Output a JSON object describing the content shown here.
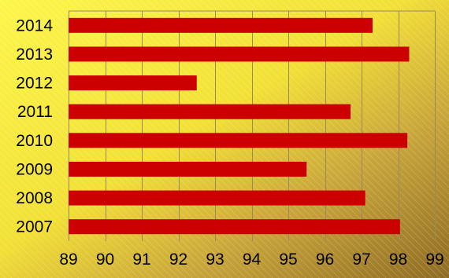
{
  "chart_data": {
    "type": "bar",
    "orientation": "horizontal",
    "categories": [
      "2014",
      "2013",
      "2012",
      "2011",
      "2010",
      "2009",
      "2008",
      "2007"
    ],
    "values": [
      97.3,
      98.3,
      92.5,
      96.7,
      98.25,
      95.5,
      97.1,
      98.05
    ],
    "x_ticks": [
      89,
      90,
      91,
      92,
      93,
      94,
      95,
      96,
      97,
      98,
      99
    ],
    "xlim": [
      89,
      99
    ],
    "grid": "vertical",
    "legend": "none",
    "colors": {
      "bar": "#cc0000",
      "grid": "#9a8a5a",
      "background_light": "#fdf64a",
      "background_dark": "#8e6b22"
    }
  }
}
